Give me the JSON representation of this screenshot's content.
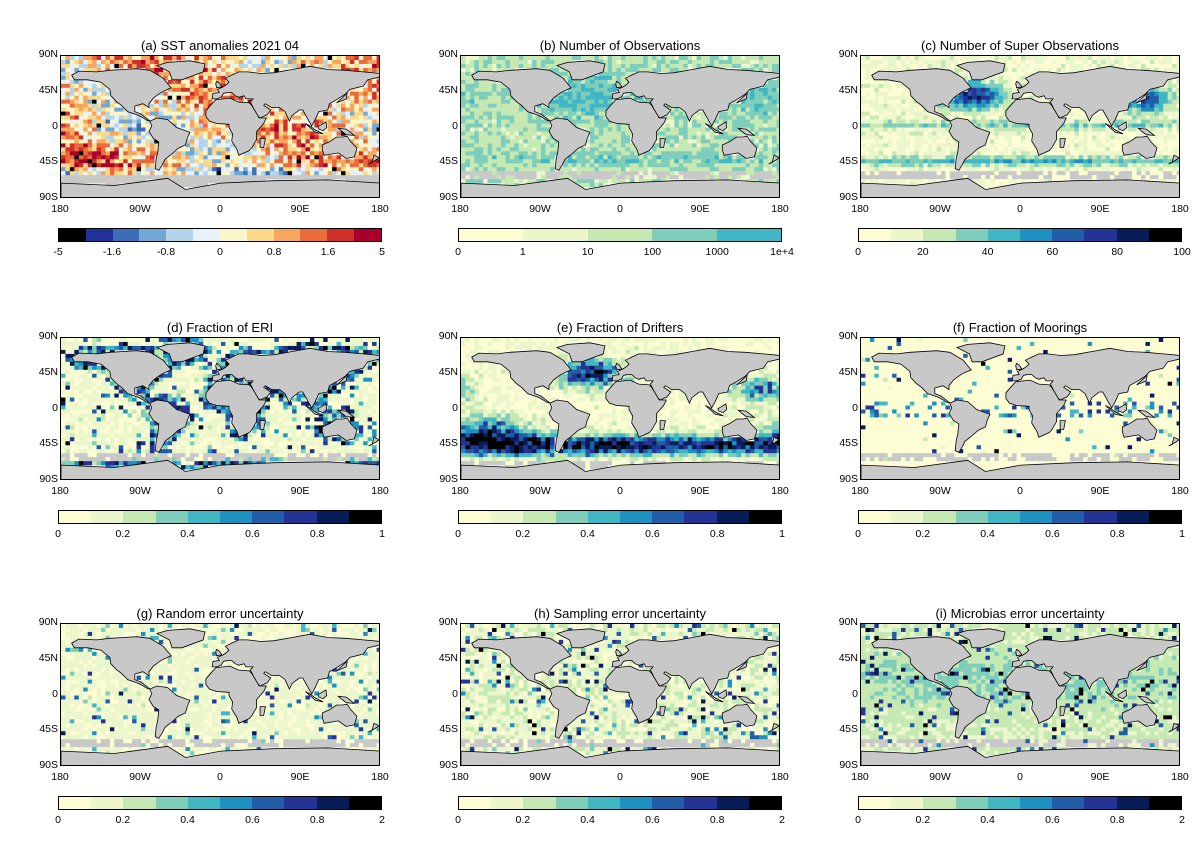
{
  "figure": {
    "footnote": "",
    "continent_color": "#c8c8c8",
    "coast_color": "#000000"
  },
  "panels": [
    {
      "id": "a",
      "title": "(a) SST anomalies 2021 04",
      "field": "sst_anomaly",
      "colors": [
        "#000000",
        "#22309a",
        "#3c6eb8",
        "#74a8d4",
        "#b3d4ea",
        "#e6f2f8",
        "#fbf6c7",
        "#fbd98b",
        "#f6a65f",
        "#ea6a3c",
        "#d0302a",
        "#a8002a"
      ],
      "tick_labels": [
        "-5",
        "-1.6",
        "-0.8",
        "0",
        "0.8",
        "1.6",
        "5"
      ],
      "tick_pos": [
        0,
        2,
        4,
        6,
        8,
        10,
        12
      ]
    },
    {
      "id": "b",
      "title": "(b) Number of Observations",
      "field": "n_obs",
      "colors": [
        "#fdfdd3",
        "#ebf6cd",
        "#c6e9b4",
        "#7fcdbb",
        "#41b6c4"
      ],
      "tick_labels": [
        "0",
        "1",
        "10",
        "100",
        "1000",
        "1e+4"
      ],
      "tick_pos": [
        0,
        1,
        2,
        3,
        4,
        5
      ]
    },
    {
      "id": "c",
      "title": "(c) Number of Super Observations",
      "field": "n_super_obs",
      "colors": [
        "#fdfdd3",
        "#ebf6cd",
        "#c6e9b4",
        "#7fcdbb",
        "#41b6c4",
        "#1d91c0",
        "#225ea8",
        "#253494",
        "#081d58",
        "#000000"
      ],
      "tick_labels": [
        "0",
        "20",
        "40",
        "60",
        "80",
        "100"
      ],
      "tick_pos": [
        0,
        2,
        4,
        6,
        8,
        10
      ]
    },
    {
      "id": "d",
      "title": "(d) Fraction of ERI",
      "field": "frac_eri",
      "colors": [
        "#fdfdd3",
        "#ebf6cd",
        "#c6e9b4",
        "#7fcdbb",
        "#41b6c4",
        "#1d91c0",
        "#225ea8",
        "#253494",
        "#081d58",
        "#000000"
      ],
      "tick_labels": [
        "0",
        "0.2",
        "0.4",
        "0.6",
        "0.8",
        "1"
      ],
      "tick_pos": [
        0,
        2,
        4,
        6,
        8,
        10
      ]
    },
    {
      "id": "e",
      "title": "(e) Fraction of Drifters",
      "field": "frac_drifters",
      "colors": [
        "#fdfdd3",
        "#ebf6cd",
        "#c6e9b4",
        "#7fcdbb",
        "#41b6c4",
        "#1d91c0",
        "#225ea8",
        "#253494",
        "#081d58",
        "#000000"
      ],
      "tick_labels": [
        "0",
        "0.2",
        "0.4",
        "0.6",
        "0.8",
        "1"
      ],
      "tick_pos": [
        0,
        2,
        4,
        6,
        8,
        10
      ]
    },
    {
      "id": "f",
      "title": "(f) Fraction of Moorings",
      "field": "frac_moorings",
      "colors": [
        "#fdfdd3",
        "#ebf6cd",
        "#c6e9b4",
        "#7fcdbb",
        "#41b6c4",
        "#1d91c0",
        "#225ea8",
        "#253494",
        "#081d58",
        "#000000"
      ],
      "tick_labels": [
        "0",
        "0.2",
        "0.4",
        "0.6",
        "0.8",
        "1"
      ],
      "tick_pos": [
        0,
        2,
        4,
        6,
        8,
        10
      ]
    },
    {
      "id": "g",
      "title": "(g) Random error uncertainty",
      "field": "random_error",
      "colors": [
        "#fdfdd3",
        "#ebf6cd",
        "#c6e9b4",
        "#7fcdbb",
        "#41b6c4",
        "#1d91c0",
        "#225ea8",
        "#253494",
        "#081d58",
        "#000000"
      ],
      "tick_labels": [
        "0",
        "0.2",
        "0.4",
        "0.6",
        "0.8",
        "2"
      ],
      "tick_pos": [
        0,
        2,
        4,
        6,
        8,
        10
      ]
    },
    {
      "id": "h",
      "title": "(h) Sampling error uncertainty",
      "field": "sampling_error",
      "colors": [
        "#fdfdd3",
        "#ebf6cd",
        "#c6e9b4",
        "#7fcdbb",
        "#41b6c4",
        "#1d91c0",
        "#225ea8",
        "#253494",
        "#081d58",
        "#000000"
      ],
      "tick_labels": [
        "0",
        "0.2",
        "0.4",
        "0.6",
        "0.8",
        "2"
      ],
      "tick_pos": [
        0,
        2,
        4,
        6,
        8,
        10
      ]
    },
    {
      "id": "i",
      "title": "(i) Microbias error uncertainty",
      "field": "microbias_error",
      "colors": [
        "#fdfdd3",
        "#ebf6cd",
        "#c6e9b4",
        "#7fcdbb",
        "#41b6c4",
        "#1d91c0",
        "#225ea8",
        "#253494",
        "#081d58",
        "#000000"
      ],
      "tick_labels": [
        "0",
        "0.2",
        "0.4",
        "0.6",
        "0.8",
        "2"
      ],
      "tick_pos": [
        0,
        2,
        4,
        6,
        8,
        10
      ]
    }
  ],
  "axes": {
    "lat_labels": [
      "90N",
      "45N",
      "0",
      "45S",
      "90S"
    ],
    "lon_labels": [
      "180",
      "90W",
      "0",
      "90E",
      "180"
    ]
  }
}
